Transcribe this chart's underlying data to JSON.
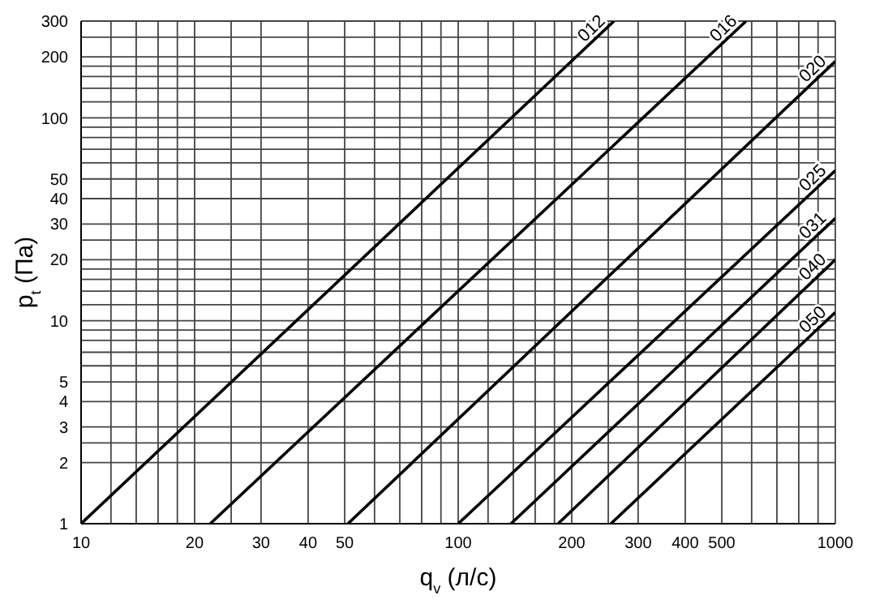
{
  "chart_data": {
    "type": "line",
    "xlabel": "q$_{v}$ (л/с)",
    "ylabel": "p$_{t}$ (Па)",
    "log": "xy",
    "grid": true,
    "legend": false,
    "marker": "none",
    "line_style": "solid",
    "xlim": [
      10,
      1000
    ],
    "ylim": [
      1,
      300
    ],
    "xticks": [
      10,
      {
        "value": 12,
        "label": null
      },
      {
        "value": 14,
        "label": null
      },
      {
        "value": 16,
        "label": null
      },
      {
        "value": 18,
        "label": null
      },
      20,
      {
        "value": 25,
        "label": null
      },
      30,
      40,
      50,
      {
        "value": 60,
        "label": null
      },
      {
        "value": 70,
        "label": null
      },
      {
        "value": 80,
        "label": null
      },
      {
        "value": 90,
        "label": null
      },
      100,
      {
        "value": 120,
        "label": null
      },
      {
        "value": 140,
        "label": null
      },
      {
        "value": 160,
        "label": null
      },
      {
        "value": 180,
        "label": null
      },
      200,
      {
        "value": 250,
        "label": null
      },
      300,
      400,
      500,
      {
        "value": 600,
        "label": null
      },
      {
        "value": 700,
        "label": null
      },
      {
        "value": 800,
        "label": null
      },
      {
        "value": 900,
        "label": null
      },
      1000
    ],
    "yticks": [
      1,
      2,
      {
        "value": 2.5,
        "label": null
      },
      3,
      4,
      5,
      {
        "value": 6,
        "label": null
      },
      {
        "value": 7,
        "label": null
      },
      {
        "value": 8,
        "label": null
      },
      {
        "value": 9,
        "label": null
      },
      10,
      {
        "value": 12,
        "label": null
      },
      {
        "value": 14,
        "label": null
      },
      {
        "value": 16,
        "label": null
      },
      {
        "value": 18,
        "label": null
      },
      20,
      {
        "value": 25,
        "label": null
      },
      30,
      40,
      50,
      {
        "value": 60,
        "label": null
      },
      {
        "value": 70,
        "label": null
      },
      {
        "value": 80,
        "label": null
      },
      {
        "value": 90,
        "label": null
      },
      100,
      {
        "value": 120,
        "label": null
      },
      {
        "value": 140,
        "label": null
      },
      {
        "value": 160,
        "label": null
      },
      {
        "value": 180,
        "label": null
      },
      200,
      {
        "value": 250,
        "label": null
      },
      300
    ],
    "series": [
      {
        "name": "012",
        "color": "#000000",
        "x": [
          10,
          259
        ],
        "values": [
          1,
          300
        ]
      },
      {
        "name": "016",
        "color": "#000000",
        "x": [
          22,
          580
        ],
        "values": [
          1,
          300
        ]
      },
      {
        "name": "020",
        "color": "#000000",
        "x": [
          51,
          1000
        ],
        "values": [
          1,
          190
        ]
      },
      {
        "name": "025",
        "color": "#000000",
        "x": [
          100,
          1000
        ],
        "values": [
          1,
          55
        ]
      },
      {
        "name": "031",
        "color": "#000000",
        "x": [
          138,
          1000
        ],
        "values": [
          1,
          32
        ]
      },
      {
        "name": "040",
        "color": "#000000",
        "x": [
          184,
          1000
        ],
        "values": [
          1,
          20
        ]
      },
      {
        "name": "050",
        "color": "#000000",
        "x": [
          254,
          1000
        ],
        "values": [
          1,
          11
        ]
      }
    ]
  }
}
